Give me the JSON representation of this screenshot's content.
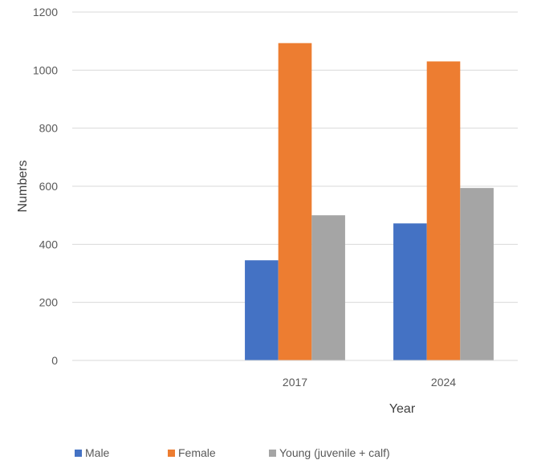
{
  "chart_data": {
    "type": "bar",
    "categories": [
      "",
      "2017",
      "2024"
    ],
    "series": [
      {
        "name": "Male",
        "values": [
          null,
          345,
          472
        ],
        "color": "#4472C4"
      },
      {
        "name": "Female",
        "values": [
          null,
          1093,
          1030
        ],
        "color": "#ED7D31"
      },
      {
        "name": "Young (juvenile + calf)",
        "values": [
          null,
          500,
          594
        ],
        "color": "#A5A5A5"
      }
    ],
    "xlabel": "Year",
    "ylabel": "Numbers",
    "ylim": [
      0,
      1200
    ],
    "yticks": [
      "0",
      "200",
      "400",
      "600",
      "800",
      "1000",
      "1200"
    ],
    "grid": true,
    "legend": "bottom-left"
  }
}
